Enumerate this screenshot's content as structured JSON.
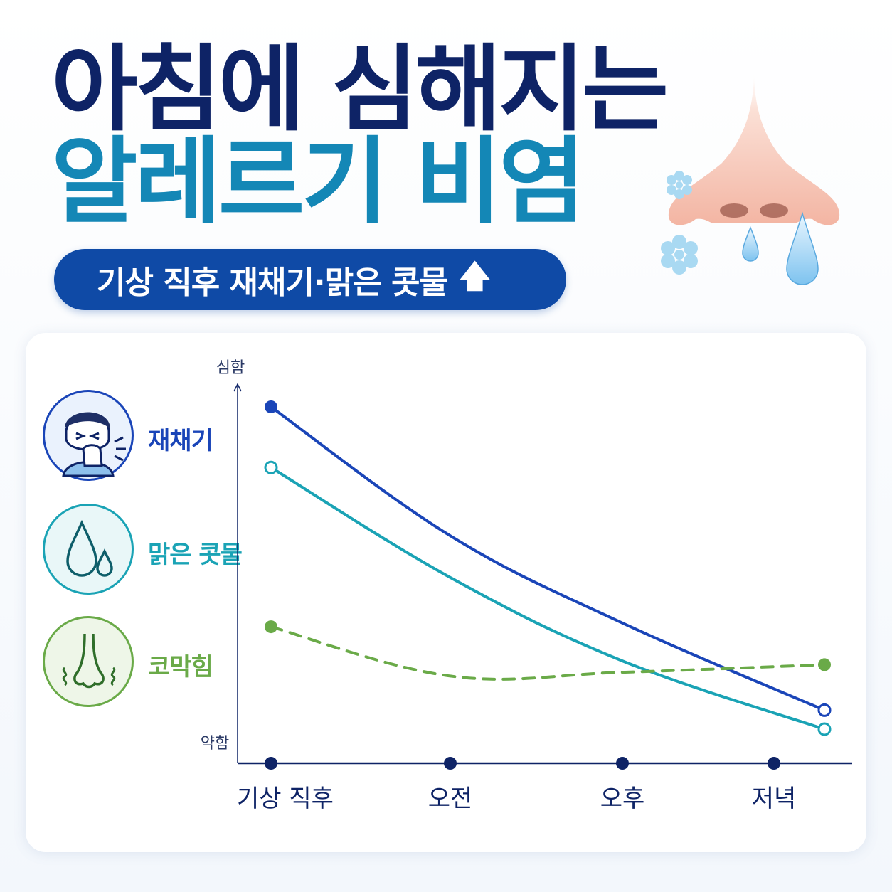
{
  "header": {
    "title_line1": "아침에 심해지는",
    "title_line2": "알레르기 비염",
    "pill_text": "기상 직후 재채기·맑은 콧물",
    "pill_arrow": "🡅"
  },
  "colors": {
    "navy": "#0e2366",
    "teal_title": "#1487b6",
    "sneeze": "#1a45b8",
    "runny_nose": "#1aa3b5",
    "congestion": "#6aaa48",
    "axis": "#0e2366",
    "pill_bg": "#0f4aa6"
  },
  "legend": [
    {
      "label": "재채기",
      "icon": "sneezing-person-icon",
      "color": "#1a45b8"
    },
    {
      "label": "맑은 콧물",
      "icon": "water-drops-icon",
      "color": "#1aa3b5"
    },
    {
      "label": "코막힘",
      "icon": "nose-icon",
      "color": "#6aaa48"
    }
  ],
  "chart_data": {
    "type": "line",
    "categories": [
      "기상 직후",
      "오전",
      "오후",
      "저녁"
    ],
    "y_axis_top_label": "심함",
    "y_axis_bottom_label": "약함",
    "ylim": [
      0,
      100
    ],
    "series": [
      {
        "name": "재채기",
        "values": [
          94,
          60,
          37,
          14
        ],
        "style": "solid",
        "marker": "filled-start-open-end",
        "color": "#1a45b8"
      },
      {
        "name": "맑은 콧물",
        "values": [
          78,
          49,
          27,
          9
        ],
        "style": "solid",
        "marker": "open",
        "color": "#1aa3b5"
      },
      {
        "name": "코막힘",
        "values": [
          36,
          23,
          24,
          26
        ],
        "style": "dashed",
        "marker": "filled",
        "color": "#6aaa48"
      }
    ]
  }
}
